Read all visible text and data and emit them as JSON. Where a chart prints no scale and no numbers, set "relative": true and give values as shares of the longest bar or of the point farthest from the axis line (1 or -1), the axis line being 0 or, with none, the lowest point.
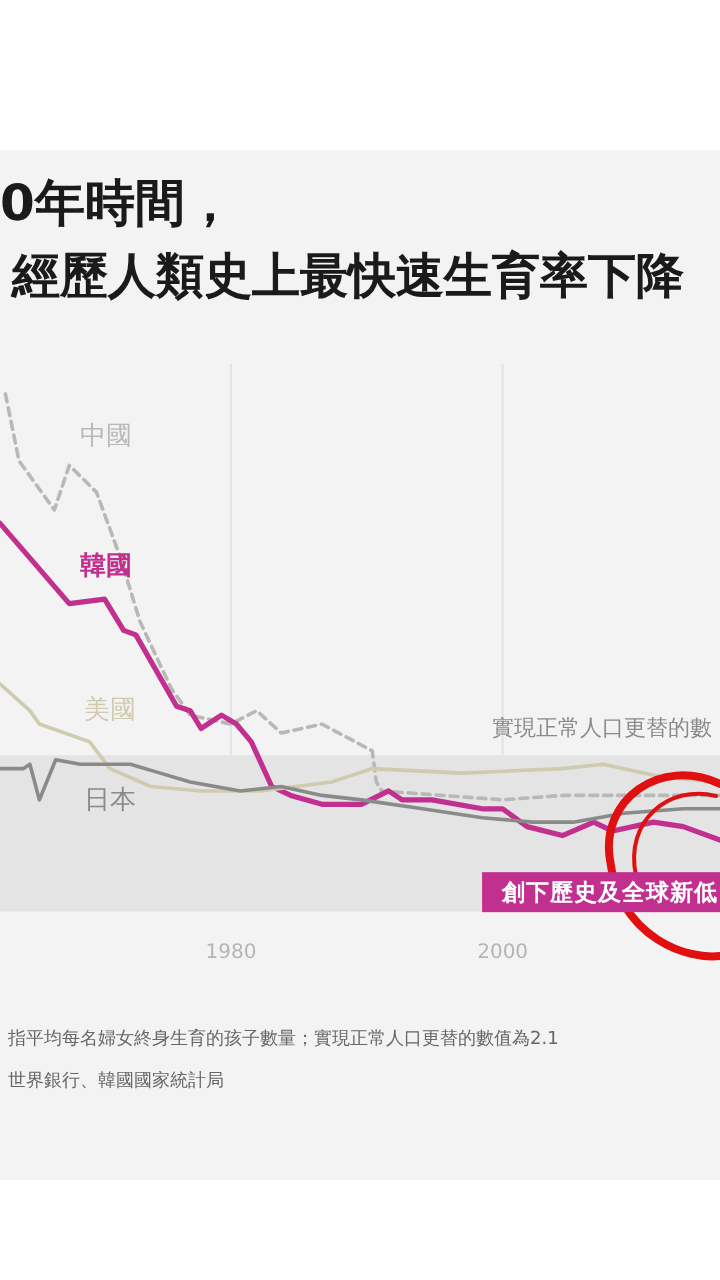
{
  "chart_data": {
    "type": "line",
    "title": "0年時間，",
    "subtitle": "經歷人類史上最快速生育率下降",
    "relative": true,
    "xlim": [
      1963,
      2016
    ],
    "xticks": [
      1980,
      2000
    ],
    "grid": "x",
    "bands": [
      {
        "axis": "y",
        "from": -0.16,
        "to": 0.19,
        "label": "實現正常人口更替的數",
        "color": "#e4e4e4"
      }
    ],
    "annotations": [
      {
        "text": "創下歷史及全球新低",
        "x": 2011,
        "y": 0.04
      },
      "指平均每名婦女終身生育的孩子數量；實現正常人口更替的數值為2.1",
      "世界銀行、韓國國家統計局"
    ],
    "series": [
      {
        "name": "中國",
        "color": "#b8b8b8",
        "line_style": "dashed",
        "x": [
          1963.4,
          1964.4,
          1967,
          1968.1,
          1970.1,
          1971.9,
          1973.3,
          1975.6,
          1977,
          1980,
          1981.9,
          1983.7,
          1986.7,
          1990.4,
          1990.7,
          1991.1,
          2000,
          2004.4,
          2010.4,
          2016
        ],
        "values": [
          1,
          0.85,
          0.74,
          0.84,
          0.78,
          0.63,
          0.49,
          0.34,
          0.28,
          0.26,
          0.29,
          0.24,
          0.26,
          0.2,
          0.13,
          0.11,
          0.09,
          0.1,
          0.1,
          0.1
        ]
      },
      {
        "name": "韓國",
        "color": "#c2308f",
        "x": [
          1963,
          1968.1,
          1970.7,
          1972.1,
          1973,
          1976,
          1977,
          1977.8,
          1979.3,
          1980.4,
          1981.5,
          1983,
          1984.4,
          1986.7,
          1989.6,
          1991.6,
          1992.6,
          1994.8,
          1998.5,
          2000,
          2001.8,
          2004.4,
          2006.7,
          2008.1,
          2011.1,
          2013.3,
          2016
        ],
        "values": [
          0.71,
          0.53,
          0.54,
          0.47,
          0.46,
          0.3,
          0.29,
          0.25,
          0.28,
          0.26,
          0.22,
          0.12,
          0.1,
          0.08,
          0.08,
          0.11,
          0.09,
          0.09,
          0.07,
          0.07,
          0.03,
          0.01,
          0.04,
          0.02,
          0.04,
          0.03,
          0
        ]
      },
      {
        "name": "美國",
        "color": "#cfcbae",
        "x": [
          1963,
          1965.2,
          1965.9,
          1969.6,
          1971.1,
          1974.1,
          1977.8,
          1982.2,
          1987.4,
          1990.4,
          1997,
          2004.4,
          2007.4,
          2011.9,
          2016
        ],
        "values": [
          0.35,
          0.29,
          0.26,
          0.22,
          0.16,
          0.12,
          0.11,
          0.11,
          0.13,
          0.16,
          0.15,
          0.16,
          0.17,
          0.14,
          0.13
        ]
      },
      {
        "name": "日本",
        "color": "#8a8a8a",
        "x": [
          1963,
          1964.7,
          1965.2,
          1965.9,
          1967.1,
          1968.9,
          1972.6,
          1974.8,
          1977,
          1980.7,
          1983.7,
          1986.7,
          1989.6,
          1994.1,
          1998.5,
          2002.2,
          2005.2,
          2008.9,
          2013.3,
          2016
        ],
        "values": [
          0.16,
          0.16,
          0.17,
          0.09,
          0.18,
          0.17,
          0.17,
          0.15,
          0.13,
          0.11,
          0.12,
          0.1,
          0.09,
          0.07,
          0.05,
          0.04,
          0.04,
          0.06,
          0.07,
          0.07
        ]
      }
    ]
  }
}
